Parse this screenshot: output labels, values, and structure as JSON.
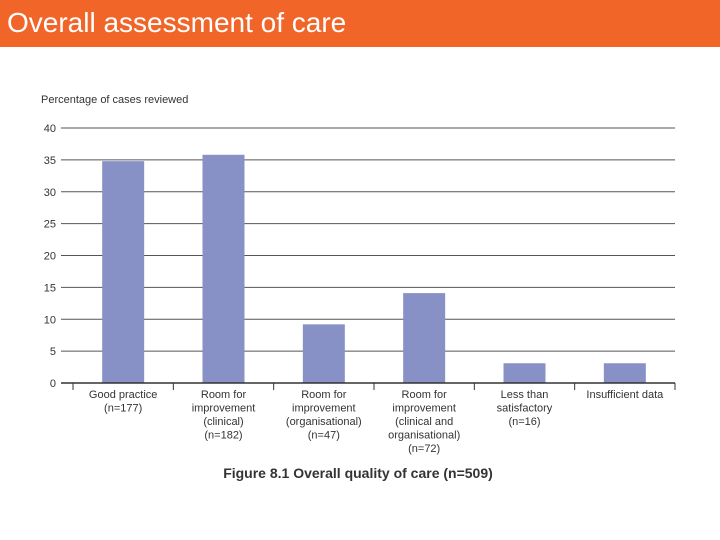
{
  "slide": {
    "title": "Overall assessment of care"
  },
  "colors": {
    "header": "#f26529",
    "bar": "#8891c6",
    "grid": "#555555"
  },
  "chart_data": {
    "type": "bar",
    "title": "Figure 8.1 Overall quality of care (n=509)",
    "ylabel": "Percentage of cases reviewed",
    "xlabel": "",
    "ylim": [
      0,
      40
    ],
    "yticks": [
      0,
      5,
      10,
      15,
      20,
      25,
      30,
      35,
      40
    ],
    "grid": true,
    "categories": [
      [
        "Good practice",
        "(n=177)"
      ],
      [
        "Room for",
        "improvement",
        "(clinical)",
        "(n=182)"
      ],
      [
        "Room for",
        "improvement",
        "(organisational)",
        "(n=47)"
      ],
      [
        "Room for",
        "improvement",
        "(clinical and",
        "organisational)",
        "(n=72)"
      ],
      [
        "Less than",
        "satisfactory",
        "(n=16)"
      ],
      [
        "Insufficient data"
      ]
    ],
    "values": [
      34.8,
      35.8,
      9.2,
      14.1,
      3.1,
      3.1
    ]
  }
}
